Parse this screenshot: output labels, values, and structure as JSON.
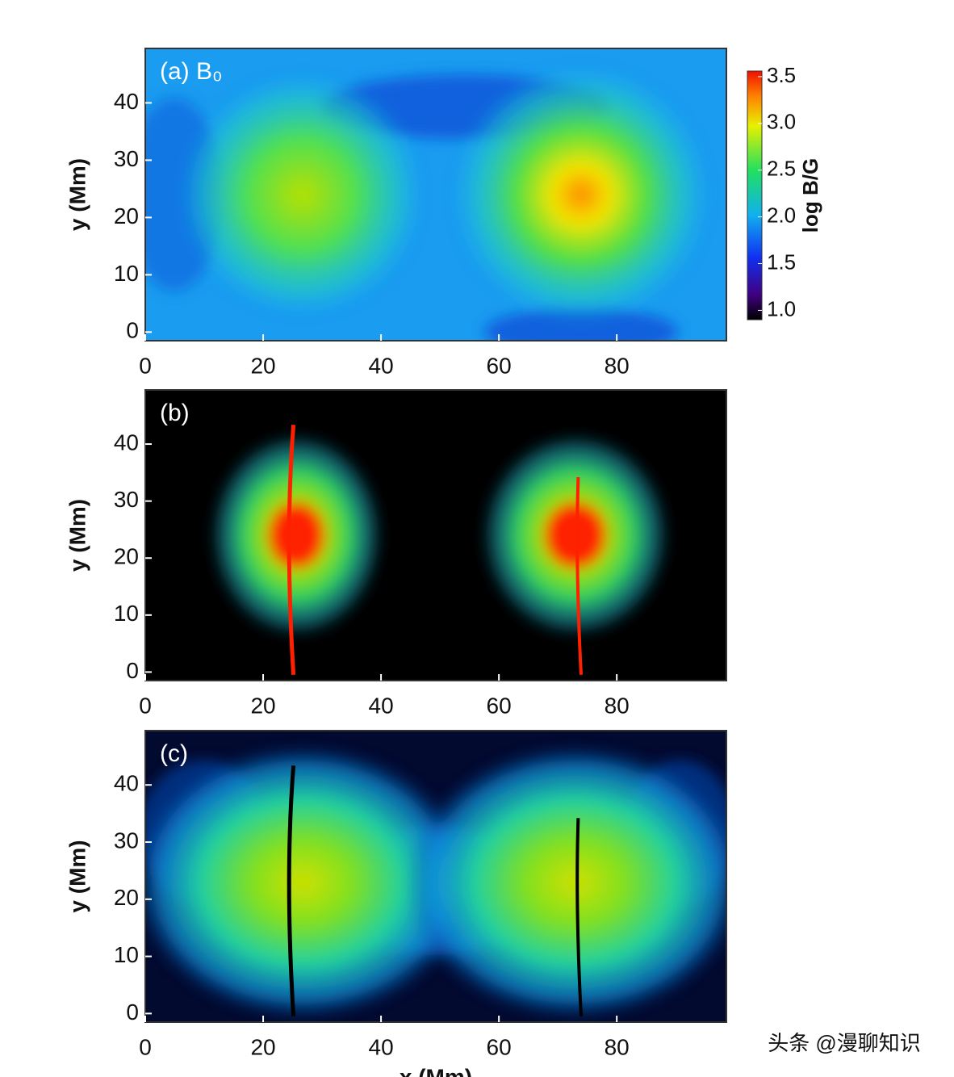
{
  "chart_data": [
    {
      "type": "heatmap",
      "panel_label": "(a) B₀",
      "ylabel": "y (Mm)",
      "xlim": [
        0,
        98.6
      ],
      "ylim": [
        -1.5,
        49.5
      ],
      "xticks": [
        0,
        20,
        40,
        60,
        80
      ],
      "yticks": [
        0,
        10,
        20,
        30,
        40
      ],
      "colorbar": {
        "label": "log B/G",
        "lim": [
          0.9,
          3.56
        ],
        "ticks": [
          {
            "value": 1,
            "label": "1.0"
          },
          1.5,
          {
            "value": 2,
            "label": "2.0"
          },
          2.5,
          {
            "value": 3,
            "label": "3.0"
          },
          3.5
        ]
      }
    },
    {
      "type": "heatmap",
      "panel_label": "(b)",
      "ylabel": "y (Mm)",
      "xlim": [
        0,
        98.6
      ],
      "ylim": [
        -1.5,
        49.5
      ],
      "xticks": [
        0,
        20,
        40,
        60,
        80
      ],
      "yticks": [
        0,
        10,
        20,
        30,
        40
      ]
    },
    {
      "type": "heatmap",
      "panel_label": "(c)",
      "ylabel": "y (Mm)",
      "xlabel": "x (Mm)",
      "xlim": [
        0,
        98.6
      ],
      "ylim": [
        -1.5,
        49.5
      ],
      "xticks": [
        0,
        20,
        40,
        60,
        80
      ],
      "yticks": [
        0,
        10,
        20,
        30,
        40
      ]
    }
  ],
  "watermark": "头条 @漫聊知识"
}
